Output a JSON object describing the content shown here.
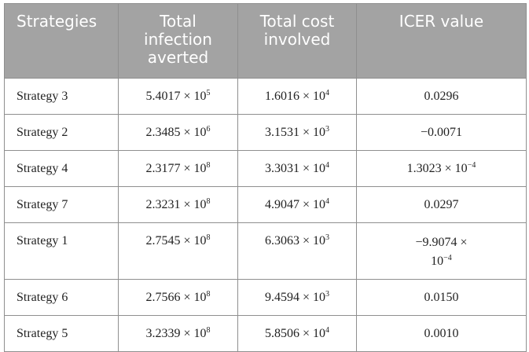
{
  "table": {
    "headers": [
      "Strategies",
      "Total infection averted",
      "Total cost involved",
      "ICER value"
    ],
    "rows": [
      {
        "strategy": "Strategy 3",
        "averted": {
          "mantissa": "5.4017",
          "exp": "5"
        },
        "cost": {
          "mantissa": "1.6016",
          "exp": "4"
        },
        "icer": {
          "text": "0.0296"
        }
      },
      {
        "strategy": "Strategy 2",
        "averted": {
          "mantissa": "2.3485",
          "exp": "6"
        },
        "cost": {
          "mantissa": "3.1531",
          "exp": "3"
        },
        "icer": {
          "text": "−0.0071"
        }
      },
      {
        "strategy": "Strategy 4",
        "averted": {
          "mantissa": "2.3177",
          "exp": "8"
        },
        "cost": {
          "mantissa": "3.3031",
          "exp": "4"
        },
        "icer": {
          "mantissa": "1.3023",
          "exp": "−4"
        }
      },
      {
        "strategy": "Strategy 7",
        "averted": {
          "mantissa": "2.3231",
          "exp": "8"
        },
        "cost": {
          "mantissa": "4.9047",
          "exp": "4"
        },
        "icer": {
          "text": "0.0297"
        }
      },
      {
        "strategy": "Strategy 1",
        "averted": {
          "mantissa": "2.7545",
          "exp": "8"
        },
        "cost": {
          "mantissa": "6.3063",
          "exp": "3"
        },
        "icer": {
          "mantissa": "−9.9074",
          "exp": "−4"
        }
      },
      {
        "strategy": "Strategy 6",
        "averted": {
          "mantissa": "2.7566",
          "exp": "8"
        },
        "cost": {
          "mantissa": "9.4594",
          "exp": "3"
        },
        "icer": {
          "text": "0.0150"
        }
      },
      {
        "strategy": "Strategy 5",
        "averted": {
          "mantissa": "3.2339",
          "exp": "8"
        },
        "cost": {
          "mantissa": "5.8506",
          "exp": "4"
        },
        "icer": {
          "text": "0.0010"
        }
      }
    ]
  }
}
